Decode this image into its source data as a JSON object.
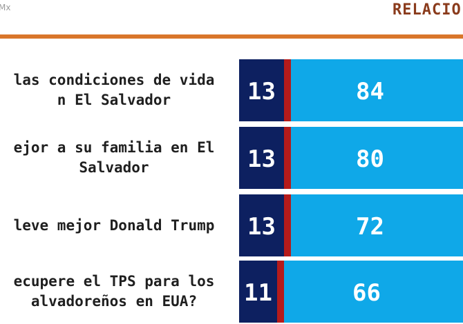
{
  "header": {
    "brand": "Mx",
    "title": "RELACIO"
  },
  "colors": {
    "dark": "#0d2060",
    "red": "#b51b1b",
    "light": "#0fa8e8",
    "rule": "#d9762b",
    "title": "#8a3b1c"
  },
  "chart_data": {
    "type": "bar",
    "orientation": "horizontal",
    "stacked": true,
    "categories": [
      "las condiciones de vida\nn El Salvador",
      "ejor a su familia en El\nSalvador",
      "leve mejor Donald Trump",
      "ecupere el TPS para los\nalvadoreños en EUA?"
    ],
    "series": [
      {
        "values": [
          13,
          13,
          13,
          11
        ],
        "labels": [
          "13",
          "13",
          "13",
          "11"
        ]
      },
      {
        "values": [
          2,
          2,
          2,
          2
        ],
        "labels": [
          "2",
          "2",
          "2",
          "2"
        ]
      },
      {
        "values": [
          84,
          80,
          72,
          66
        ],
        "labels": [
          "84",
          "80",
          "72",
          "66"
        ]
      }
    ],
    "xlim": [
      0,
      100
    ],
    "grid": false,
    "legend": "none"
  }
}
